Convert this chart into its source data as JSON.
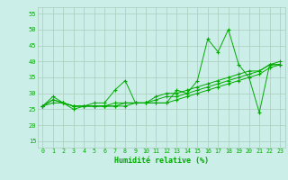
{
  "background_color": "#cceee8",
  "grid_color": "#aaccbb",
  "line_color": "#00aa00",
  "marker_color": "#00aa00",
  "xlabel": "Humidité relative (%)",
  "xlabel_color": "#00aa00",
  "xlim": [
    -0.5,
    23.5
  ],
  "ylim": [
    13,
    57
  ],
  "yticks": [
    15,
    20,
    25,
    30,
    35,
    40,
    45,
    50,
    55
  ],
  "xticks": [
    0,
    1,
    2,
    3,
    4,
    5,
    6,
    7,
    8,
    9,
    10,
    11,
    12,
    13,
    14,
    15,
    16,
    17,
    18,
    19,
    20,
    21,
    22,
    23
  ],
  "series": [
    [
      26,
      29,
      27,
      25,
      26,
      27,
      27,
      31,
      34,
      27,
      27,
      27,
      27,
      31,
      30,
      34,
      47,
      43,
      50,
      39,
      35,
      24,
      39,
      39
    ],
    [
      26,
      28,
      27,
      26,
      26,
      26,
      26,
      26,
      27,
      27,
      27,
      29,
      30,
      30,
      31,
      32,
      33,
      34,
      35,
      36,
      37,
      37,
      39,
      40
    ],
    [
      26,
      28,
      27,
      26,
      26,
      26,
      26,
      27,
      27,
      27,
      27,
      28,
      29,
      29,
      30,
      31,
      32,
      33,
      34,
      35,
      36,
      37,
      39,
      39
    ],
    [
      26,
      27,
      27,
      26,
      26,
      26,
      26,
      26,
      26,
      27,
      27,
      27,
      27,
      28,
      29,
      30,
      31,
      32,
      33,
      34,
      35,
      36,
      38,
      39
    ]
  ]
}
